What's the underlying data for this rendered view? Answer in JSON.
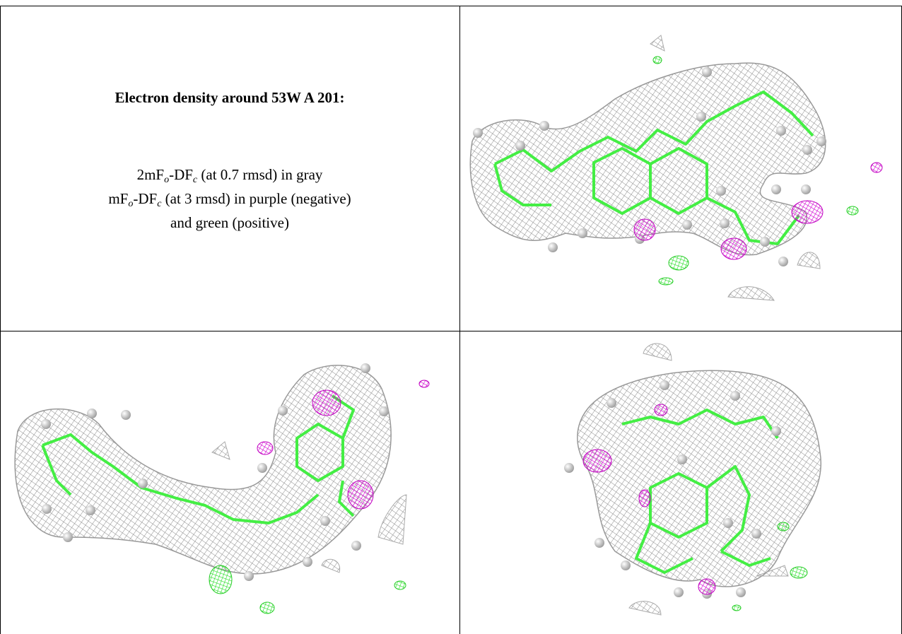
{
  "title": "Electron density around 53W A 201:",
  "legend": {
    "lines": [
      [
        {
          "text": "2mF"
        },
        {
          "sub": "o"
        },
        {
          "text": "-DF"
        },
        {
          "sub": "c"
        },
        {
          "text": " (at 0.7 rmsd) in gray"
        }
      ],
      [
        {
          "text": "mF"
        },
        {
          "sub": "o"
        },
        {
          "text": "-DF"
        },
        {
          "sub": "c"
        },
        {
          "text": " (at 3 rmsd) in purple (negative)"
        }
      ],
      [
        {
          "text": "and green (positive)"
        }
      ]
    ]
  }
}
